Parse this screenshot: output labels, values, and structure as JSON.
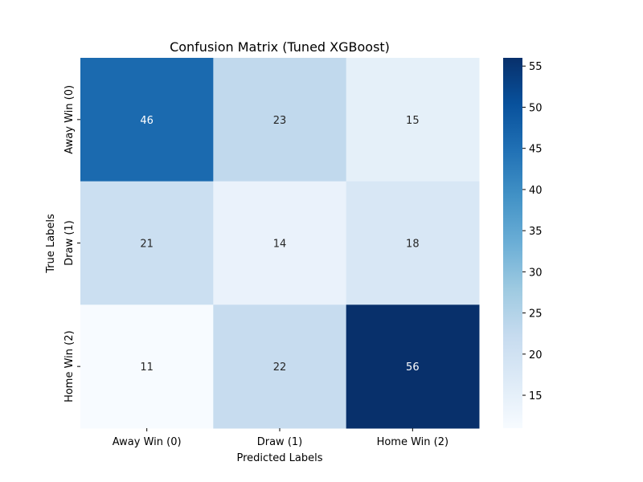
{
  "chart_data": {
    "type": "heatmap",
    "title": "Confusion Matrix (Tuned XGBoost)",
    "xlabel": "Predicted Labels",
    "ylabel": "True Labels",
    "x_categories": [
      "Away Win (0)",
      "Draw (1)",
      "Home Win (2)"
    ],
    "y_categories": [
      "Away Win (0)",
      "Draw (1)",
      "Home Win (2)"
    ],
    "values": [
      [
        46,
        23,
        15
      ],
      [
        21,
        14,
        18
      ],
      [
        11,
        22,
        56
      ]
    ],
    "colormap": "Blues",
    "colorbar": {
      "min": 11,
      "max": 56,
      "ticks": [
        15,
        20,
        25,
        30,
        35,
        40,
        45,
        50,
        55
      ]
    },
    "annotation_light_color": "#ffffff",
    "annotation_dark_color": "#262626"
  }
}
